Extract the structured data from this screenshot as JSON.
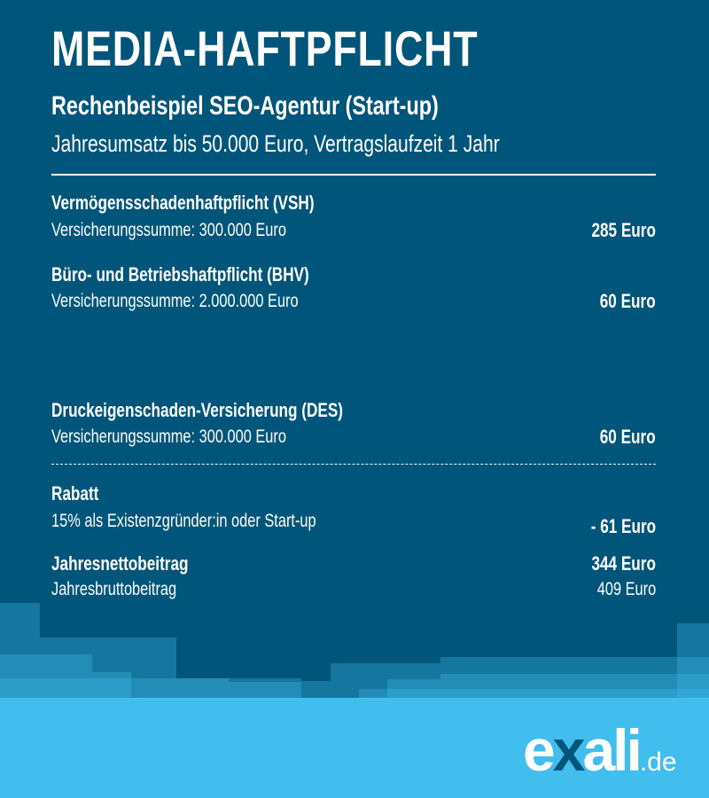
{
  "title": "MEDIA-HAFTPFLICHT",
  "subtitle": "Rechenbeispiel SEO-Agentur (Start-up)",
  "description": "Jahresumsatz bis 50.000 Euro, Vertragslaufzeit 1 Jahr",
  "items": [
    {
      "name": "Vermögensschadenhaftpflicht (VSH)",
      "detail": "Versicherungssumme: 300.000 Euro",
      "price": "285 Euro"
    },
    {
      "name": "Büro- und Betriebshaftpflicht (BHV)",
      "detail": "Versicherungssumme: 2.000.000 Euro",
      "price": "60 Euro"
    },
    {
      "name": "Druckeigenschaden-Versicherung (DES)",
      "detail": "Versicherungssumme: 300.000 Euro",
      "price": "60 Euro"
    }
  ],
  "discount": {
    "name": "Rabatt",
    "detail": "15% als Existenzgründer:in oder Start-up",
    "price": "- 61 Euro"
  },
  "net": {
    "label": "Jahresnettobeitrag",
    "price": "344 Euro"
  },
  "gross": {
    "label": "Jahresbruttobeitrag",
    "price": "409 Euro"
  },
  "logo": {
    "text": "exali.de",
    "part1": "e",
    "part2": "x",
    "part3": "ali",
    "part4": ".de"
  },
  "colors": {
    "background": "#00557a",
    "accent": "#41bdee"
  }
}
